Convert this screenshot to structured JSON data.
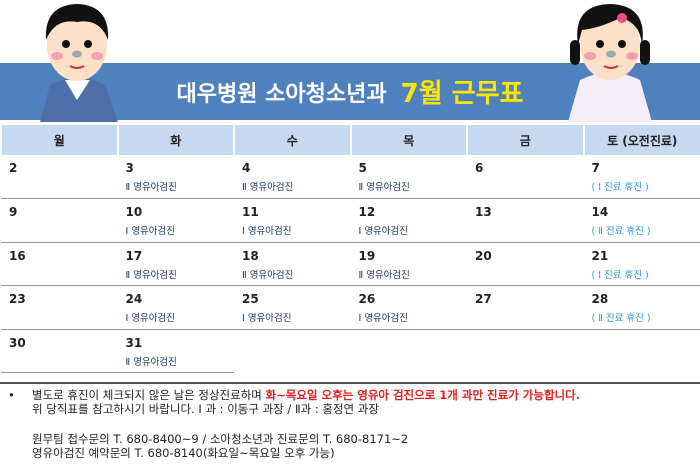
{
  "header": {
    "title_main": "대우병원 소아청소년과",
    "title_accent": "7월 근무표"
  },
  "colors": {
    "banner": "#4f81bd",
    "accent": "#ffe600",
    "header_row": "#c6d9f0",
    "note_red": "#e02020",
    "saturday_note": "#2e9bd6"
  },
  "weekdays": [
    "월",
    "화",
    "수",
    "목",
    "금",
    "토 (오전진료)"
  ],
  "weeks": [
    [
      {
        "day": "2",
        "note": ""
      },
      {
        "day": "3",
        "note": "Ⅱ 영유아검진"
      },
      {
        "day": "4",
        "note": "Ⅱ 영유아검진"
      },
      {
        "day": "5",
        "note": "Ⅱ 영유아검진"
      },
      {
        "day": "6",
        "note": ""
      },
      {
        "day": "7",
        "note": "( Ⅰ 진료 휴진 )"
      }
    ],
    [
      {
        "day": "9",
        "note": ""
      },
      {
        "day": "10",
        "note": "Ⅰ 영유아검진"
      },
      {
        "day": "11",
        "note": "Ⅰ 영유아검진"
      },
      {
        "day": "12",
        "note": "Ⅰ 영유아검진"
      },
      {
        "day": "13",
        "note": ""
      },
      {
        "day": "14",
        "note": "( Ⅱ 진료 휴진 )"
      }
    ],
    [
      {
        "day": "16",
        "note": ""
      },
      {
        "day": "17",
        "note": "Ⅱ 영유아검진"
      },
      {
        "day": "18",
        "note": "Ⅱ 영유아검진"
      },
      {
        "day": "19",
        "note": "Ⅱ 영유아검진"
      },
      {
        "day": "20",
        "note": ""
      },
      {
        "day": "21",
        "note": "( Ⅰ 진료 휴진 )"
      }
    ],
    [
      {
        "day": "23",
        "note": ""
      },
      {
        "day": "24",
        "note": "Ⅰ 영유아검진"
      },
      {
        "day": "25",
        "note": "Ⅰ 영유아검진"
      },
      {
        "day": "26",
        "note": "Ⅰ 영유아검진"
      },
      {
        "day": "27",
        "note": ""
      },
      {
        "day": "28",
        "note": "( Ⅱ 진료 휴진 )"
      }
    ],
    [
      {
        "day": "30",
        "note": ""
      },
      {
        "day": "31",
        "note": "Ⅱ 영유아검진"
      },
      {
        "day": "",
        "note": ""
      },
      {
        "day": "",
        "note": ""
      },
      {
        "day": "",
        "note": ""
      },
      {
        "day": "",
        "note": ""
      }
    ]
  ],
  "footer": {
    "bullet": "•",
    "line1_normal": "별도로 휴진이 체크되지 않은 날은 정상진료하며 ",
    "line1_red": "화~목요일 오후는 영유아 검진으로 1개 과만 진료가 가능합니다.",
    "line2": "위 당직표를 참고하시기 바랍니다.   Ⅰ 과 : 이동구 과장  /  Ⅱ과 : 홍정연 과장",
    "line3": "원무팀 접수문의 T. 680-8400~9    /    소아청소년과 진료문의 T. 680-8171~2",
    "line4": "영유아검진 예약문의 T. 680-8140(화요일~목요일 오후 가능)"
  }
}
